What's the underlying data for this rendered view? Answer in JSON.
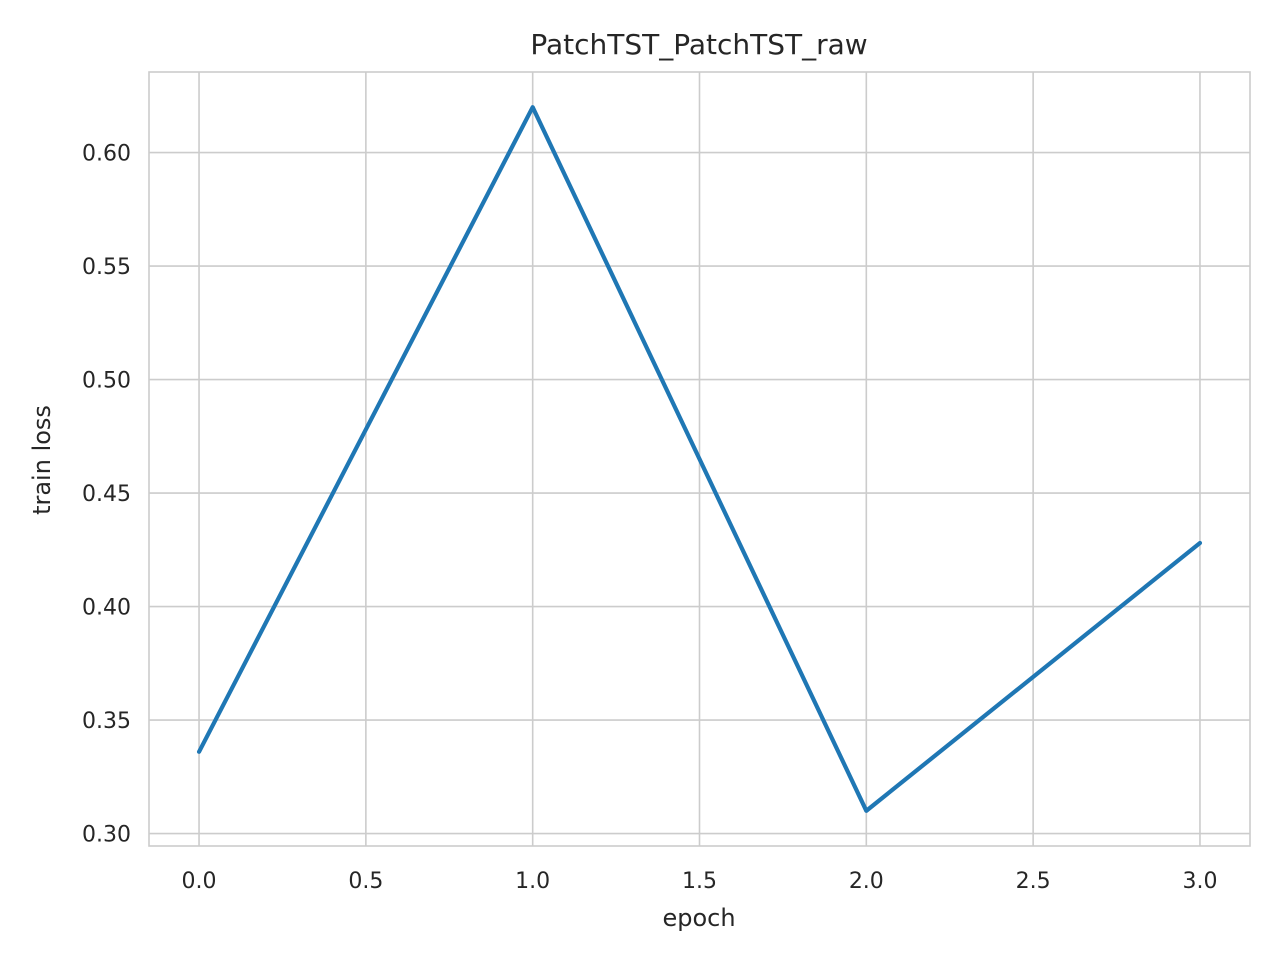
{
  "chart_data": {
    "type": "line",
    "title": "PatchTST_PatchTST_raw",
    "xlabel": "epoch",
    "ylabel": "train loss",
    "x": [
      0,
      1,
      2,
      3
    ],
    "series": [
      {
        "values": [
          0.336,
          0.62,
          0.31,
          0.428
        ],
        "color": "#1f77b4"
      }
    ],
    "xticks": [
      0.0,
      0.5,
      1.0,
      1.5,
      2.0,
      2.5,
      3.0
    ],
    "xtick_labels": [
      "0.0",
      "0.5",
      "1.0",
      "1.5",
      "2.0",
      "2.5",
      "3.0"
    ],
    "yticks": [
      0.3,
      0.35,
      0.4,
      0.45,
      0.5,
      0.55,
      0.6
    ],
    "ytick_labels": [
      "0.30",
      "0.35",
      "0.40",
      "0.45",
      "0.50",
      "0.55",
      "0.60"
    ],
    "xlim": [
      -0.15,
      3.15
    ],
    "ylim": [
      0.2945,
      0.6355
    ],
    "grid": true,
    "colors": {
      "grid": "#cccccc",
      "text": "#262626",
      "background": "#ffffff"
    }
  }
}
